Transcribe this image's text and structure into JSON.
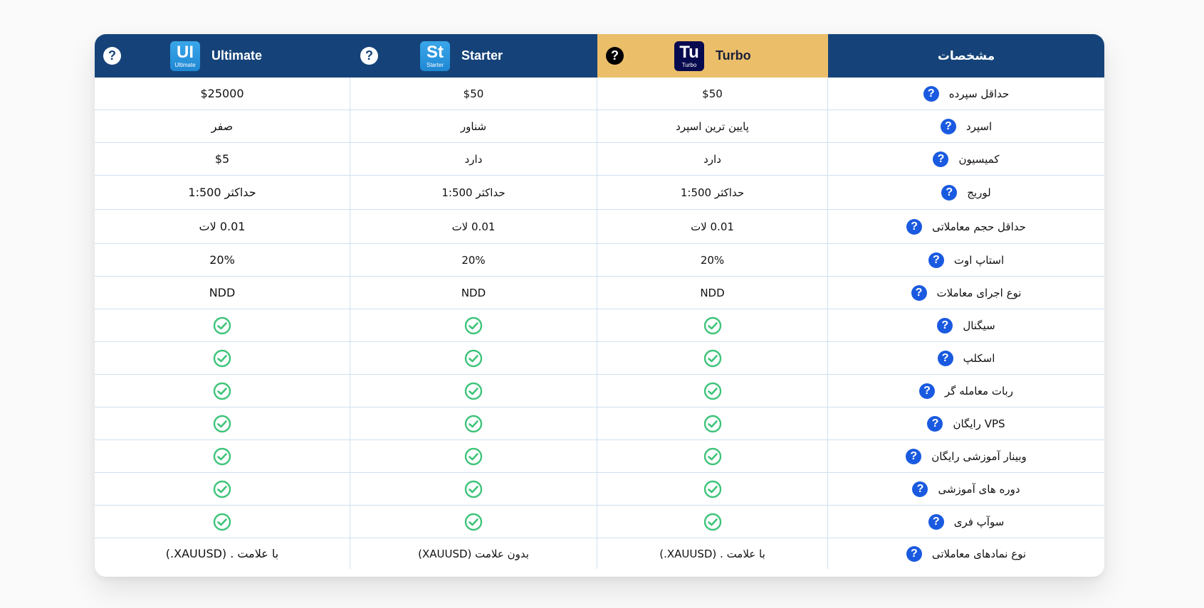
{
  "header": {
    "spec_title": "مشخصات",
    "plans": [
      {
        "key": "ultimate",
        "name": "Ultimate",
        "abbr": "UI",
        "sub": "Ultimate",
        "help": "?"
      },
      {
        "key": "starter",
        "name": "Starter",
        "abbr": "St",
        "sub": "Starter",
        "help": "?"
      },
      {
        "key": "turbo",
        "name": "Turbo",
        "abbr": "Tu",
        "sub": "Turbo",
        "help": "?"
      }
    ]
  },
  "help_glyph": "?",
  "colors": {
    "header_bg": "#154379",
    "turbo_bg": "#ebbe6a",
    "check": "#3ec47a",
    "help": "#1a5ae0",
    "accent_dot": "#e23b3b"
  },
  "rows": [
    {
      "label": "حداقل سپرده",
      "ultimate": "$25000",
      "starter": "$50",
      "turbo": "$50"
    },
    {
      "label": "اسپرد",
      "ultimate": "صفر",
      "starter": "شناور",
      "turbo": "پایین ترین اسپرد"
    },
    {
      "label": "کمیسیون",
      "ultimate": "$5",
      "starter": "دارد",
      "turbo": "دارد"
    },
    {
      "label": "لوریج",
      "ultimate": "حداکثر 1:500",
      "starter": "حداکثر 1:500",
      "turbo": "حداکثر 1:500"
    },
    {
      "label": "حداقل حجم معاملاتی",
      "ultimate": "0.01 لات",
      "starter": "0.01 لات",
      "turbo": "0.01 لات"
    },
    {
      "label": "استاپ اوت",
      "ultimate": "20%",
      "starter": "20%",
      "turbo": "20%"
    },
    {
      "label": "نوع اجرای معاملات",
      "ultimate": "NDD",
      "starter": "NDD",
      "turbo": "NDD"
    },
    {
      "label": "سیگنال",
      "ultimate": "check",
      "starter": "check",
      "turbo": "check"
    },
    {
      "label": "اسکلپ",
      "ultimate": "check",
      "starter": "check",
      "turbo": "check"
    },
    {
      "label": "ربات معامله گر",
      "ultimate": "check",
      "starter": "check",
      "turbo": "check"
    },
    {
      "label": "VPS رایگان",
      "ultimate": "check",
      "starter": "check",
      "turbo": "check"
    },
    {
      "label": "وبینار آموزشی رایگان",
      "ultimate": "check",
      "starter": "check",
      "turbo": "check"
    },
    {
      "label": "دوره های آموزشی",
      "ultimate": "check",
      "starter": "check",
      "turbo": "check"
    },
    {
      "label": "سوآپ فری",
      "ultimate": "check",
      "starter": "check",
      "turbo": "check"
    },
    {
      "label": "نوع نمادهای معاملاتی",
      "ultimate": "با علامت . (XAUUSD.)",
      "starter": "بدون علامت (XAUUSD)",
      "turbo": "با علامت . (XAUUSD.)"
    }
  ]
}
